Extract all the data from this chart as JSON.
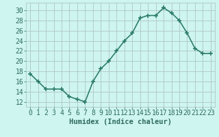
{
  "x": [
    0,
    1,
    2,
    3,
    4,
    5,
    6,
    7,
    8,
    9,
    10,
    11,
    12,
    13,
    14,
    15,
    16,
    17,
    18,
    19,
    20,
    21,
    22,
    23
  ],
  "y": [
    17.5,
    16.0,
    14.5,
    14.5,
    14.5,
    13.0,
    12.5,
    12.0,
    16.0,
    18.5,
    20.0,
    22.0,
    24.0,
    25.5,
    28.5,
    29.0,
    29.0,
    30.5,
    29.5,
    28.0,
    25.5,
    22.5,
    21.5,
    21.5
  ],
  "xlabel": "Humidex (Indice chaleur)",
  "ylabel_ticks": [
    12,
    14,
    16,
    18,
    20,
    22,
    24,
    26,
    28,
    30
  ],
  "ylim": [
    11.0,
    31.5
  ],
  "xlim": [
    -0.5,
    23.5
  ],
  "line_color": "#2e7d6b",
  "bg_color": "#cef5f0",
  "grid_color": "#b0c4c4",
  "tick_label_color": "#2e6b5e",
  "xlabel_color": "#2e6b5e",
  "marker": "+",
  "marker_size": 5,
  "linewidth": 1.2,
  "xlabel_fontsize": 7.5,
  "tick_fontsize": 7
}
